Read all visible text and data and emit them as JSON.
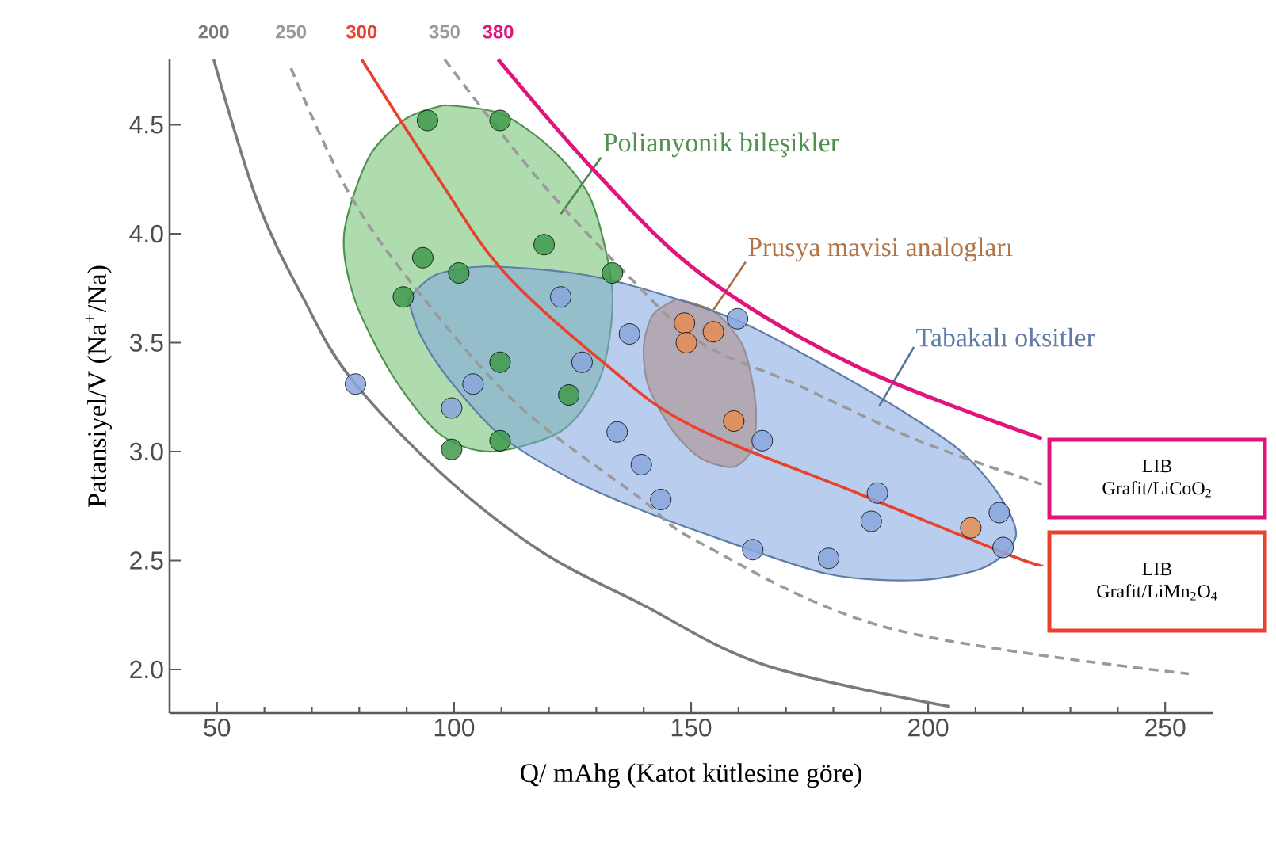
{
  "chart_data": {
    "type": "scatter",
    "xlabel": "Q/ mAhg (Katot kütlesine göre)",
    "ylabel": "Patansiyel/V (Na$^{+}$/Na)",
    "xlim": [
      40,
      260
    ],
    "ylim": [
      1.8,
      4.8
    ],
    "xticks": [
      50,
      100,
      150,
      200,
      250
    ],
    "yticks": [
      {
        "value": 2,
        "label": "2.0"
      },
      {
        "value": 2.5,
        "label": "2.5"
      },
      {
        "value": 3,
        "label": "3.0"
      },
      {
        "value": 3.5,
        "label": "3.5"
      },
      {
        "value": 4,
        "label": "4.0"
      },
      {
        "value": 4.5,
        "label": "4.5"
      }
    ],
    "annotations": [
      "LIB",
      "Grafit/LiCoO$_{2}$",
      "LIB",
      "Grafit/LiMn$_{2}$O$_{4}$"
    ],
    "series": [
      {
        "type": "area",
        "name": "Polianyonik bileşikler",
        "color": "#6cc06c",
        "x": [
          98,
          110,
          121,
          129,
          133.4,
          131,
          123,
          108,
          97,
          87,
          79,
          76.8,
          82,
          90,
          98
        ],
        "values": [
          4.59,
          4.55,
          4.38,
          4.15,
          3.73,
          3.35,
          3.1,
          3.0,
          3.08,
          3.35,
          3.7,
          4.0,
          4.35,
          4.53,
          4.59
        ]
      },
      {
        "type": "area",
        "name": "Prusya mavisi analogları",
        "color": "#ee9a5e",
        "x": [
          147,
          155,
          161,
          163.6,
          163,
          159,
          152,
          146,
          141,
          140,
          142,
          147
        ],
        "values": [
          3.7,
          3.64,
          3.48,
          3.22,
          3.02,
          2.93,
          2.97,
          3.1,
          3.3,
          3.48,
          3.63,
          3.7
        ]
      },
      {
        "type": "area",
        "name": "Tabakalı oksitler",
        "color": "#7fa6e0",
        "x": [
          90.3,
          96,
          106.6,
          125,
          139.5,
          160,
          178.5,
          195,
          207,
          215,
          218.5,
          212,
          198,
          178.5,
          152,
          138.5,
          125,
          110,
          99,
          93,
          90.3
        ],
        "values": [
          3.7,
          3.81,
          3.85,
          3.82,
          3.75,
          3.6,
          3.39,
          3.18,
          3.0,
          2.8,
          2.61,
          2.47,
          2.41,
          2.44,
          2.63,
          2.74,
          2.87,
          3.07,
          3.33,
          3.53,
          3.7
        ]
      },
      {
        "marker": "circle",
        "color": "#3f9a4c",
        "x": [
          94.4,
          109.7,
          119,
          93.4,
          101,
          89.3,
          133.4,
          109.7,
          124.2,
          99.5,
          109.7
        ],
        "values": [
          4.52,
          4.52,
          3.95,
          3.89,
          3.82,
          3.71,
          3.82,
          3.41,
          3.26,
          3.01,
          3.05
        ]
      },
      {
        "marker": "circle",
        "color": "#e58d55",
        "x": [
          148.6,
          149,
          154.7,
          159,
          209
        ],
        "values": [
          3.59,
          3.5,
          3.55,
          3.14,
          2.65
        ]
      },
      {
        "marker": "circle",
        "color": "#8aa6dc",
        "x": [
          79.2,
          122.5,
          127,
          137,
          159.8,
          134.4,
          139.5,
          143.6,
          165,
          163,
          179,
          189.3,
          188,
          215,
          215.8,
          104,
          99.5
        ],
        "values": [
          3.31,
          3.71,
          3.41,
          3.54,
          3.61,
          3.09,
          2.94,
          2.78,
          3.05,
          2.55,
          2.51,
          2.81,
          2.68,
          2.72,
          2.56,
          3.31,
          3.2
        ]
      },
      {
        "type": "line",
        "name": "200",
        "color": "#7a7a7a",
        "line_style": "solid",
        "x": [
          49.3,
          58.5,
          68.3,
          78.1,
          96.8,
          117.8,
          139.5,
          165.6,
          204.6
        ],
        "values": [
          4.8,
          4.15,
          3.7,
          3.34,
          2.91,
          2.55,
          2.3,
          2.02,
          1.83
        ]
      },
      {
        "type": "line",
        "name": "250",
        "color": "#9a9a9a",
        "line_style": "dashed",
        "x": [
          65.6,
          78,
          93.7,
          113.7,
          139,
          152,
          191.7,
          255
        ],
        "values": [
          4.76,
          4.18,
          3.7,
          3.21,
          2.79,
          2.58,
          2.19,
          1.98
        ]
      },
      {
        "type": "line",
        "name": "300",
        "color": "#e8412c",
        "line_style": "solid",
        "x": [
          80.5,
          96.8,
          110.7,
          132,
          150,
          185,
          217.8,
          224
        ],
        "values": [
          4.8,
          4.25,
          3.82,
          3.4,
          3.12,
          2.81,
          2.52,
          2.48
        ]
      },
      {
        "type": "line",
        "name": "350",
        "color": "#9a9a9a",
        "line_style": "dashed",
        "x": [
          98,
          117.8,
          137.5,
          152,
          172,
          198,
          224
        ],
        "values": [
          4.8,
          4.25,
          3.79,
          3.5,
          3.31,
          3.05,
          2.85
        ]
      },
      {
        "type": "line",
        "name": "380",
        "color": "#e0147a",
        "line_style": "solid",
        "x": [
          109.3,
          130,
          152.4,
          185,
          224
        ],
        "values": [
          4.8,
          4.28,
          3.81,
          3.39,
          3.06
        ]
      }
    ]
  }
}
